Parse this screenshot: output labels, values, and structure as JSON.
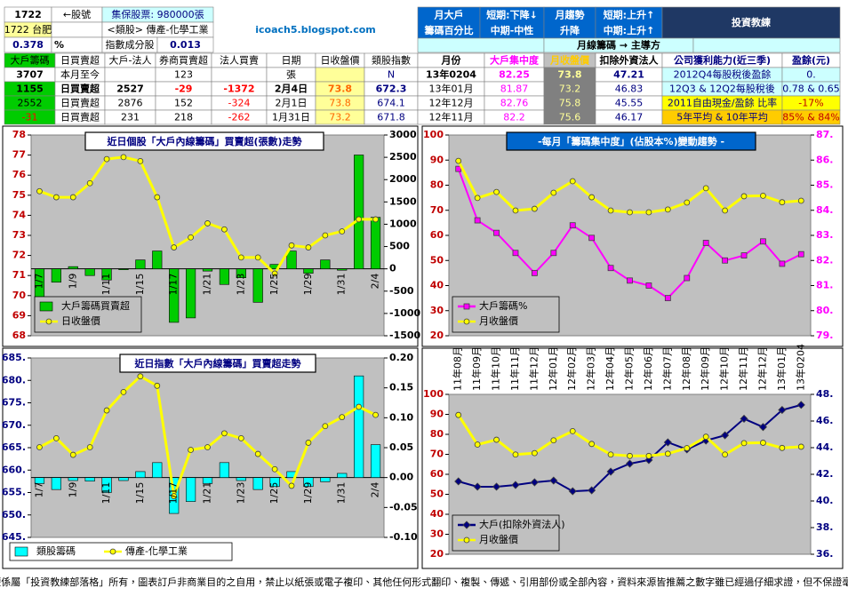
{
  "header": {
    "stock_code": "1722",
    "stock_code_note": "←股號",
    "custody": "集保股票: 980000張",
    "stock_name": "1722 台肥",
    "sector": "<類股> 傳產-化學工業",
    "ratio": "0.378",
    "ratio_unit": "%",
    "index_component": "指數成分股",
    "index_weight": "0.013",
    "site": "icoach5.blogspot.com",
    "monthly_label": [
      "月大戶",
      "籌碼百分比"
    ],
    "monthly_trend": [
      "短期:下降↓",
      "中期-中性"
    ],
    "trend_label": [
      "月趨勢",
      "升降"
    ],
    "price_trend": [
      "短期:上升↑",
      "中期:上升↑"
    ],
    "logo": "投資教練",
    "leader": "月線籌碼 → 主導方"
  },
  "daily_table": {
    "columns": [
      "大戶籌碼",
      "日買賣超",
      "大戶-法人",
      "券商買賣超",
      "法人買賣",
      "日期",
      "日收盤價",
      "類股指數"
    ],
    "rows": [
      [
        "3707",
        "本月至今",
        null,
        "123",
        null,
        "張",
        null,
        "N"
      ],
      [
        "1155",
        "日買賣超",
        "2527",
        "-29",
        "-1372",
        "2月4日",
        "73.8",
        "672.3"
      ],
      [
        "2552",
        "日買賣超",
        "2876",
        "152",
        "-324",
        "2月1日",
        "73.8",
        "674.1"
      ],
      [
        "-31",
        "日買賣超",
        "231",
        "218",
        "-262",
        "1月31日",
        "73.2",
        "671.8"
      ]
    ]
  },
  "monthly_table": {
    "columns": [
      "月份",
      "大戶集中度",
      "月收盤價",
      "扣除外資法人",
      "公司獲利能力(近三季)",
      "盈餘(元)"
    ],
    "rows": [
      [
        "13年0204",
        "82.25",
        "73.8",
        "47.21",
        "2012Q4每股稅後盈餘",
        "0."
      ],
      [
        "13年01月",
        "81.87",
        "73.2",
        "46.83",
        "12Q3 & 12Q2每股稅後",
        "0.78 & 0.65"
      ],
      [
        "12年12月",
        "82.76",
        "75.8",
        "45.55",
        "2011自由現金/盈餘 比率",
        "-17%"
      ],
      [
        "12年11月",
        "82.2",
        "75.6",
        "46.17",
        "5年平均 & 10年平均",
        "85% & 84%"
      ]
    ]
  },
  "chart_data": [
    {
      "type": "combo",
      "title": "近日個股「大戶內線籌碼」買賣超(張數)走勢",
      "categories": [
        "1/7",
        null,
        "1/9",
        null,
        "1/11",
        null,
        "1/15",
        null,
        "1/17",
        null,
        "1/21",
        null,
        "1/23",
        null,
        "1/25",
        null,
        "1/29",
        null,
        "1/31",
        null,
        "2/4"
      ],
      "xaxis_position": "zero",
      "series": [
        {
          "name": "大戶籌碼買賣超",
          "type": "bar",
          "axis": "y2",
          "color": "#00cc00",
          "values": [
            -650,
            -300,
            50,
            -150,
            -250,
            -20,
            200,
            400,
            -1200,
            -1100,
            -50,
            -350,
            -200,
            -750,
            100,
            400,
            -100,
            200,
            -31,
            2552,
            1155
          ]
        },
        {
          "name": "日收盤價",
          "type": "line",
          "axis": "y",
          "color": "#ffff00",
          "marker": "circle",
          "values": [
            75.2,
            74.9,
            74.9,
            75.6,
            76.8,
            76.9,
            76.7,
            74.9,
            72.4,
            72.9,
            73.6,
            73.3,
            71.9,
            71.9,
            71.1,
            72.5,
            72.4,
            73.0,
            73.2,
            73.8,
            73.8
          ]
        }
      ],
      "ylim": [
        68,
        78
      ],
      "yticks": [
        68,
        69,
        70,
        71,
        72,
        73,
        74,
        75,
        76,
        77,
        78
      ],
      "ycolor": "#c00000",
      "y2lim": [
        -1500,
        3000
      ],
      "y2ticks": [
        -1500,
        -1000,
        -500,
        0,
        500,
        1000,
        1500,
        2000,
        2500,
        3000
      ],
      "y2color": "#000000",
      "grid": false,
      "legend": "lower left"
    },
    {
      "type": "combo",
      "title": "-每月「籌碼集中度」(佔股本%)變動趨勢 -",
      "series": [
        {
          "name": "大戶籌碼%",
          "type": "line",
          "axis": "y2",
          "color": "#ff00ff",
          "marker": "square",
          "values": [
            85.65,
            83.6,
            83.1,
            82.3,
            81.5,
            82.3,
            83.4,
            82.9,
            81.7,
            81.2,
            81.0,
            80.5,
            81.3,
            82.7,
            82.0,
            82.2,
            82.76,
            81.87,
            82.25
          ]
        },
        {
          "name": "月收盤價",
          "type": "line",
          "axis": "y",
          "color": "#ffff00",
          "marker": "circle",
          "values": [
            89.7,
            74.9,
            77.3,
            69.9,
            70.6,
            77.0,
            81.6,
            75.2,
            69.9,
            69.2,
            69.2,
            70.3,
            73.1,
            78.8,
            69.9,
            75.6,
            75.8,
            73.2,
            73.8
          ]
        }
      ],
      "ylim": [
        20,
        100
      ],
      "yticks": [
        20,
        30,
        40,
        50,
        60,
        70,
        80,
        90,
        100
      ],
      "ycolor": "#c00000",
      "y2lim": [
        79,
        87
      ],
      "y2ticks": [
        {
          "value": 79,
          "label": "79."
        },
        {
          "value": 80,
          "label": "80."
        },
        {
          "value": 81,
          "label": "81."
        },
        {
          "value": 82,
          "label": "82."
        },
        {
          "value": 83,
          "label": "83."
        },
        {
          "value": 84,
          "label": "84."
        },
        {
          "value": 85,
          "label": "85."
        },
        {
          "value": 86,
          "label": "86."
        },
        {
          "value": 87,
          "label": "87."
        }
      ],
      "y2color": "#ff00ff",
      "grid": false,
      "legend": "lower left"
    },
    {
      "type": "combo",
      "title": "近日指數「大戶內線籌碼」買賣超走勢",
      "categories": [
        "1/7",
        null,
        "1/9",
        null,
        "1/11",
        null,
        "1/15",
        null,
        "1/17",
        null,
        "1/21",
        null,
        "1/23",
        null,
        "1/25",
        null,
        "1/29",
        null,
        "1/31",
        null,
        "2/4"
      ],
      "xaxis_position": "zero",
      "series": [
        {
          "name": "類股籌碼",
          "type": "bar",
          "axis": "y2",
          "color": "#00ffff",
          "values": [
            -0.01,
            -0.02,
            -0.005,
            -0.006,
            -0.025,
            -0.005,
            0.01,
            0.025,
            -0.06,
            -0.04,
            -0.01,
            0.025,
            -0.005,
            -0.02,
            -0.015,
            0.01,
            -0.015,
            -0.007,
            0.007,
            0.17,
            0.055
          ]
        },
        {
          "name": "傳產-化學工業",
          "type": "line",
          "axis": "y",
          "color": "#ffff00",
          "marker": "circle",
          "values": [
            665.1,
            667.1,
            663.4,
            665.1,
            673.3,
            677.4,
            680.9,
            678.8,
            654.2,
            664.5,
            665.1,
            668.2,
            667.1,
            663.6,
            660.2,
            656.5,
            666.1,
            669.8,
            671.8,
            674.1,
            672.3
          ]
        }
      ],
      "ylim": [
        645,
        685
      ],
      "yticks": [
        {
          "value": 645,
          "label": "645."
        },
        {
          "value": 650,
          "label": "650."
        },
        {
          "value": 655,
          "label": "655."
        },
        {
          "value": 660,
          "label": "660."
        },
        {
          "value": 665,
          "label": "665."
        },
        {
          "value": 670,
          "label": "670."
        },
        {
          "value": 675,
          "label": "675."
        },
        {
          "value": 680,
          "label": "680."
        },
        {
          "value": 685,
          "label": "685."
        }
      ],
      "ycolor": "#000080",
      "y2lim": [
        -0.1,
        0.2
      ],
      "y2ticks": [
        {
          "value": -0.1,
          "label": "-0.10"
        },
        {
          "value": -0.05,
          "label": "-0.05"
        },
        {
          "value": 0,
          "label": "0.00"
        },
        {
          "value": 0.05,
          "label": "0.05"
        },
        {
          "value": 0.1,
          "label": "0.10"
        },
        {
          "value": 0.15,
          "label": "0.15"
        },
        {
          "value": 0.2,
          "label": "0.20"
        }
      ],
      "y2color": "#000000",
      "grid": false,
      "legend": "bottom"
    },
    {
      "type": "combo",
      "categories": [
        "11年08月",
        "11年09月",
        "11年10月",
        "11年11月",
        "11年12月",
        "12年01月",
        "12年02月",
        "12年03月",
        "12年04月",
        "12年05月",
        "12年06月",
        "12年07月",
        "12年08月",
        "12年09月",
        "12年10月",
        "12年11月",
        "12年12月",
        "13年01月",
        "13年0204"
      ],
      "xaxis_position": "top",
      "series": [
        {
          "name": "大戶(扣除外資法人)",
          "type": "line",
          "axis": "y2",
          "color": "#000080",
          "marker": "diamond",
          "values": [
            41.47,
            41.07,
            41.07,
            41.2,
            41.4,
            41.53,
            40.73,
            40.8,
            42.2,
            42.8,
            43.07,
            44.4,
            43.87,
            44.53,
            44.93,
            46.17,
            45.55,
            46.83,
            47.21
          ]
        },
        {
          "name": "月收盤價",
          "type": "line",
          "axis": "y",
          "color": "#ffff00",
          "marker": "circle",
          "values": [
            89.7,
            74.9,
            77.3,
            69.9,
            70.6,
            77.0,
            81.6,
            75.2,
            69.9,
            69.2,
            69.2,
            70.3,
            73.1,
            78.8,
            69.9,
            75.6,
            75.8,
            73.2,
            73.8
          ]
        }
      ],
      "ylim": [
        20,
        100
      ],
      "yticks": [
        20,
        30,
        40,
        50,
        60,
        70,
        80,
        90,
        100
      ],
      "ycolor": "#c00000",
      "y2lim": [
        36,
        48
      ],
      "y2ticks": [
        {
          "value": 36,
          "label": "36."
        },
        {
          "value": 38,
          "label": "38."
        },
        {
          "value": 40,
          "label": "40."
        },
        {
          "value": 42,
          "label": "42."
        },
        {
          "value": 44,
          "label": "44."
        },
        {
          "value": 46,
          "label": "46."
        },
        {
          "value": 48,
          "label": "48."
        }
      ],
      "y2color": "#000080",
      "grid": false,
      "legend": "lower left"
    }
  ],
  "footer": "*本著作權係屬「投資教練部落格」所有，圖表訂戶非商業目的之自用，禁止以紙張或電子複印、其他任何形式翻印、複製、傳遞、引用部份或全部內容，資料來源皆推薦之數字雖已經過仔細求證，但不保證毫無錯誤。"
}
